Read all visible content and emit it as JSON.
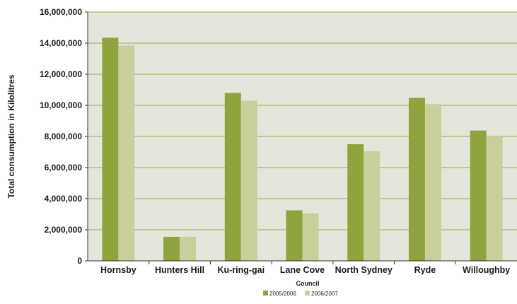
{
  "chart_data": {
    "type": "bar",
    "categories": [
      "Hornsby",
      "Hunters Hill",
      "Ku-ring-gai",
      "Lane Cove",
      "North Sydney",
      "Ryde",
      "Willoughby"
    ],
    "series": [
      {
        "name": "2005/2006",
        "color": "#8fa43d",
        "values": [
          14350000,
          1550000,
          10800000,
          3250000,
          7500000,
          10480000,
          8380000
        ]
      },
      {
        "name": "2006/2007",
        "color": "#c9cf9b",
        "values": [
          13850000,
          1550000,
          10300000,
          3050000,
          7050000,
          10080000,
          8000000
        ]
      }
    ],
    "title": "",
    "xlabel": "Council",
    "ylabel": "Total consumption in Kilolitres",
    "ylim": [
      0,
      16000000
    ],
    "ytick_labels": [
      "0",
      "2,000,000",
      "4,000,000",
      "6,000,000",
      "8,000,000",
      "10,000,000",
      "12,000,000",
      "14,000,000",
      "16,000,000"
    ],
    "grid": true,
    "legend_position": "bottom-center",
    "plot_background": "#e4e6dc",
    "grid_color": "#9aaa45"
  }
}
